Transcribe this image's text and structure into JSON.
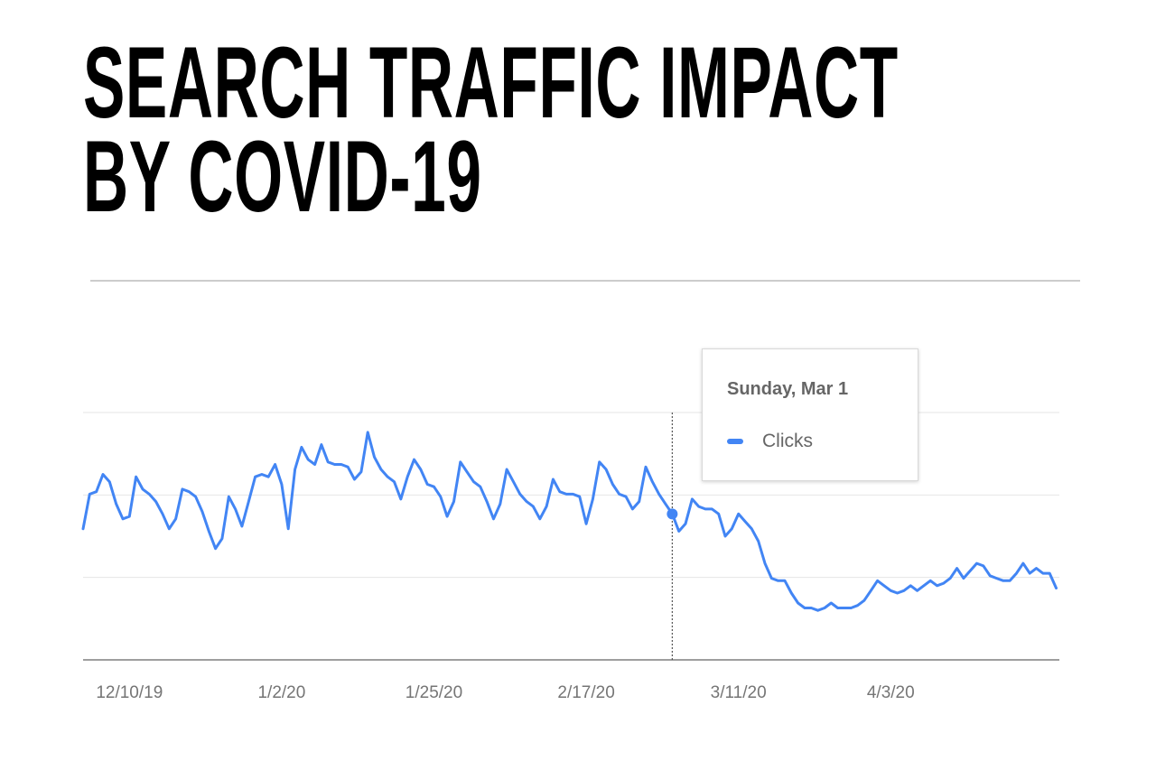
{
  "headline": {
    "line1": "SEARCH TRAFFIC IMPACT",
    "line2": "BY COVID-19"
  },
  "colors": {
    "line": "#4285f4",
    "gridline": "#e6e6e6",
    "axis": "#9e9e9e",
    "tick_text": "#757575",
    "headline": "#000000"
  },
  "tooltip": {
    "title": "Sunday, Mar 1",
    "series_label": "Clicks",
    "highlight_date": "2020-03-01"
  },
  "chart_data": {
    "type": "line",
    "title": "",
    "xlabel": "",
    "ylabel": "",
    "grid": true,
    "y_axis_labels_shown": false,
    "ylim": [
      0,
      100
    ],
    "x_tick_labels": [
      "12/10/19",
      "1/2/20",
      "1/25/20",
      "2/17/20",
      "3/11/20",
      "4/3/20"
    ],
    "x_tick_dates": [
      "2019-12-10",
      "2020-01-02",
      "2020-01-25",
      "2020-02-17",
      "2020-03-11",
      "2020-04-03"
    ],
    "start_date": "2019-12-03",
    "series": [
      {
        "name": "Clicks",
        "values": [
          53,
          67,
          68,
          75,
          72,
          63,
          57,
          58,
          74,
          69,
          67,
          64,
          59,
          53,
          57,
          69,
          68,
          66,
          60,
          52,
          45,
          49,
          66,
          61,
          54,
          64,
          74,
          75,
          74,
          79,
          71,
          53,
          77,
          86,
          81,
          79,
          87,
          80,
          79,
          79,
          78,
          73,
          76,
          92,
          82,
          77,
          74,
          72,
          65,
          74,
          81,
          77,
          71,
          70,
          66,
          58,
          64,
          80,
          76,
          72,
          70,
          64,
          57,
          63,
          77,
          72,
          67,
          64,
          62,
          57,
          62,
          73,
          68,
          67,
          67,
          66,
          55,
          65,
          80,
          77,
          71,
          67,
          66,
          61,
          64,
          78,
          72,
          67,
          63,
          59,
          52,
          55,
          65,
          62,
          61,
          61,
          59,
          50,
          53,
          59,
          56,
          53,
          48,
          39,
          33,
          32,
          32,
          27,
          23,
          21,
          21,
          20,
          21,
          23,
          21,
          21,
          21,
          22,
          24,
          28,
          32,
          30,
          28,
          27,
          28,
          30,
          28,
          30,
          32,
          30,
          31,
          33,
          37,
          33,
          36,
          39,
          38,
          34,
          33,
          32,
          32,
          35,
          39,
          35,
          37,
          35,
          35,
          29
        ]
      }
    ]
  }
}
